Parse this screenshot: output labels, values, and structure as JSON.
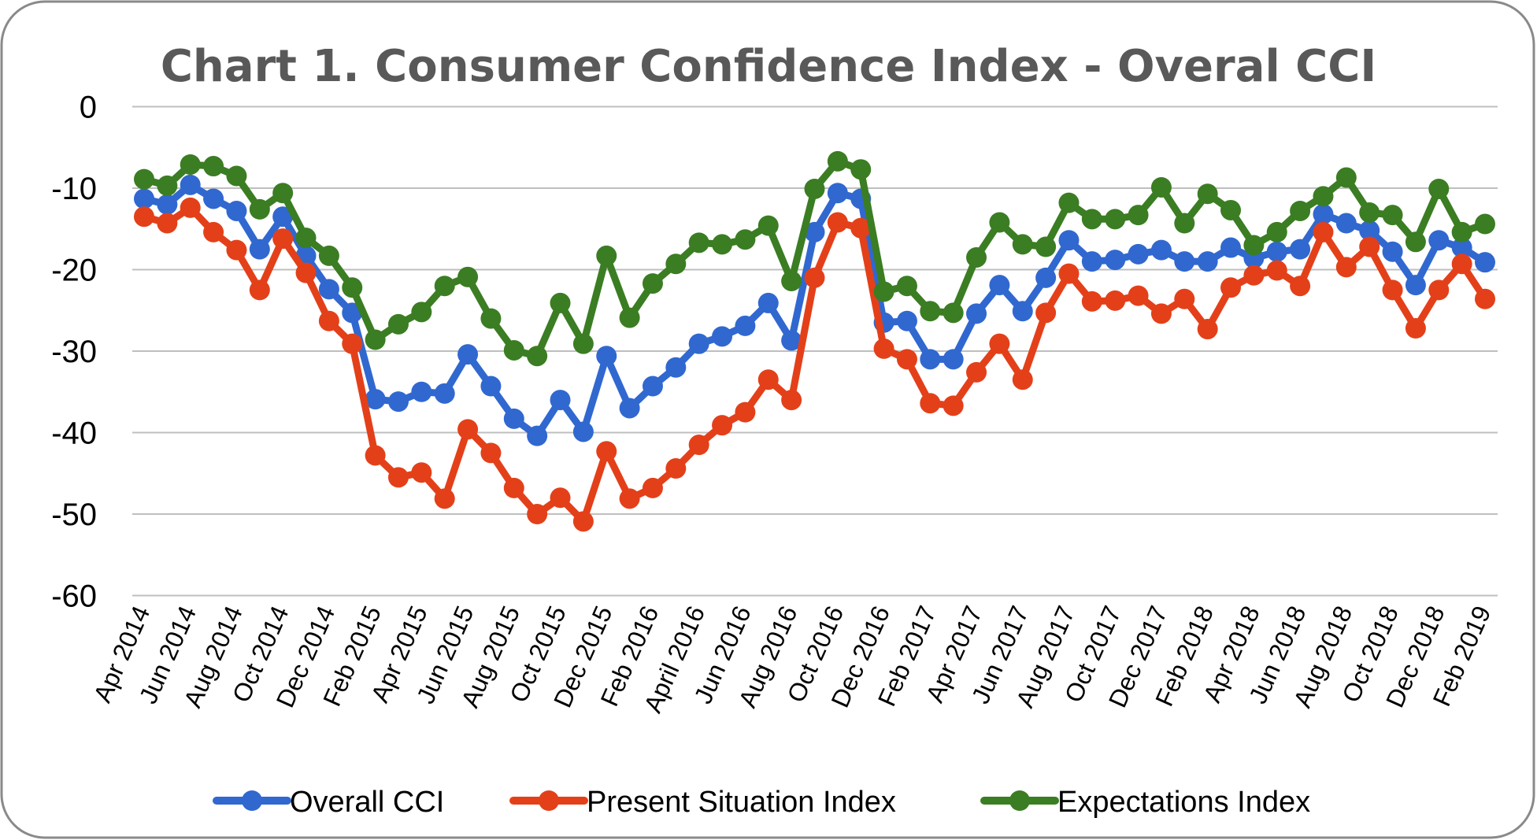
{
  "chart_data": {
    "type": "line",
    "title": "Chart 1. Consumer Confidence Index - Overal CCI",
    "xlabel": "",
    "ylabel": "",
    "ylim": [
      -60,
      0
    ],
    "yticks": [
      "0",
      "-10",
      "-20",
      "-30",
      "-40",
      "-50",
      "-60"
    ],
    "ytick_values": [
      0,
      -10,
      -20,
      -30,
      -40,
      -50,
      -60
    ],
    "grid": true,
    "legend_position": "bottom",
    "x": [
      "Apr 2014",
      "May 2014",
      "Jun 2014",
      "Jul 2014",
      "Aug 2014",
      "Sep 2014",
      "Oct 2014",
      "Nov 2014",
      "Dec 2014",
      "Jan 2015",
      "Feb 2015",
      "Mar 2015",
      "Apr 2015",
      "May 2015",
      "Jun 2015",
      "Jul 2015",
      "Aug 2015",
      "Sep 2015",
      "Oct 2015",
      "Nov 2015",
      "Dec 2015",
      "Jan 2016",
      "Feb 2016",
      "Mar 2016",
      "Apr 2016",
      "May 2016",
      "Jun 2016",
      "Jul 2016",
      "Aug 2016",
      "Sep 2016",
      "Oct 2016",
      "Nov 2016",
      "Dec 2016",
      "Jan 2017",
      "Feb 2017",
      "Mar 2017",
      "Apr 2017",
      "May 2017",
      "Jun 2017",
      "Jul 2017",
      "Aug 2017",
      "Sep 2017",
      "Oct 2017",
      "Nov 2017",
      "Dec 2017",
      "Jan 2018",
      "Feb 2018",
      "Mar 2018",
      "Apr 2018",
      "May 2018",
      "Jun 2018",
      "Jul 2018",
      "Aug 2018",
      "Sep 2018",
      "Oct 2018",
      "Nov 2018",
      "Dec 2018",
      "Jan 2019",
      "Feb 2019"
    ],
    "xtick_labels": [
      "Apr 2014",
      "Jun 2014",
      "Aug 2014",
      "Oct 2014",
      "Dec 2014",
      "Feb 2015",
      "Apr 2015",
      "Jun 2015",
      "Aug 2015",
      "Oct 2015",
      "Dec 2015",
      "Feb 2016",
      "April 2016",
      "Jun 2016",
      "Aug 2016",
      "Oct 2016",
      "Dec 2016",
      "Feb 2017",
      "Apr 2017",
      "Jun 2017",
      "Aug 2017",
      "Oct 2017",
      "Dec 2017",
      "Feb 2018",
      "Apr 2018",
      "Jun 2018",
      "Aug 2018",
      "Oct 2018",
      "Dec 2018",
      "Feb 2019"
    ],
    "xtick_every": 2,
    "series": [
      {
        "name": "Overall CCI",
        "color": "#3068D0",
        "values": [
          -11.3,
          -12.0,
          -9.6,
          -11.3,
          -12.8,
          -17.5,
          -13.5,
          -18.3,
          -22.4,
          -25.3,
          -35.9,
          -36.2,
          -35.0,
          -35.2,
          -30.4,
          -34.3,
          -38.3,
          -40.4,
          -36.0,
          -39.9,
          -30.6,
          -37.0,
          -34.3,
          -32.0,
          -29.1,
          -28.2,
          -26.9,
          -24.1,
          -28.7,
          -15.4,
          -10.6,
          -11.3,
          -26.5,
          -26.3,
          -31.0,
          -31.0,
          -25.4,
          -21.9,
          -25.1,
          -21.0,
          -16.4,
          -19.0,
          -18.8,
          -18.1,
          -17.6,
          -19.0,
          -19.0,
          -17.3,
          -18.6,
          -17.8,
          -17.5,
          -13.2,
          -14.3,
          -15.2,
          -17.8,
          -21.9,
          -16.4,
          -17.3,
          -19.1
        ]
      },
      {
        "name": "Present Situation Index",
        "color": "#E3401A",
        "values": [
          -13.5,
          -14.3,
          -12.4,
          -15.4,
          -17.6,
          -22.5,
          -16.2,
          -20.4,
          -26.3,
          -29.1,
          -42.8,
          -45.5,
          -44.9,
          -48.1,
          -39.6,
          -42.5,
          -46.8,
          -50.0,
          -48.0,
          -50.9,
          -42.3,
          -48.1,
          -46.8,
          -44.4,
          -41.5,
          -39.1,
          -37.5,
          -33.5,
          -36.0,
          -21.0,
          -14.2,
          -14.9,
          -29.7,
          -31.0,
          -36.4,
          -36.7,
          -32.6,
          -29.1,
          -33.5,
          -25.3,
          -20.5,
          -23.9,
          -23.8,
          -23.2,
          -25.4,
          -23.6,
          -27.3,
          -22.2,
          -20.7,
          -20.1,
          -22.0,
          -15.4,
          -19.7,
          -17.2,
          -22.5,
          -27.2,
          -22.5,
          -19.3,
          -23.6
        ]
      },
      {
        "name": "Expectations Index",
        "color": "#3B7D23",
        "values": [
          -8.9,
          -9.7,
          -7.1,
          -7.3,
          -8.5,
          -12.6,
          -10.6,
          -16.1,
          -18.3,
          -22.2,
          -28.6,
          -26.7,
          -25.2,
          -22.0,
          -20.9,
          -26.0,
          -29.9,
          -30.6,
          -24.1,
          -29.1,
          -18.3,
          -25.9,
          -21.7,
          -19.3,
          -16.7,
          -16.9,
          -16.3,
          -14.6,
          -21.4,
          -10.1,
          -6.7,
          -7.7,
          -22.7,
          -22.0,
          -25.1,
          -25.3,
          -18.5,
          -14.2,
          -16.9,
          -17.2,
          -11.8,
          -13.8,
          -13.8,
          -13.3,
          -9.9,
          -14.3,
          -10.7,
          -12.7,
          -17.0,
          -15.4,
          -12.8,
          -11.0,
          -8.7,
          -13.0,
          -13.3,
          -16.6,
          -10.1,
          -15.4,
          -14.4
        ]
      }
    ]
  }
}
